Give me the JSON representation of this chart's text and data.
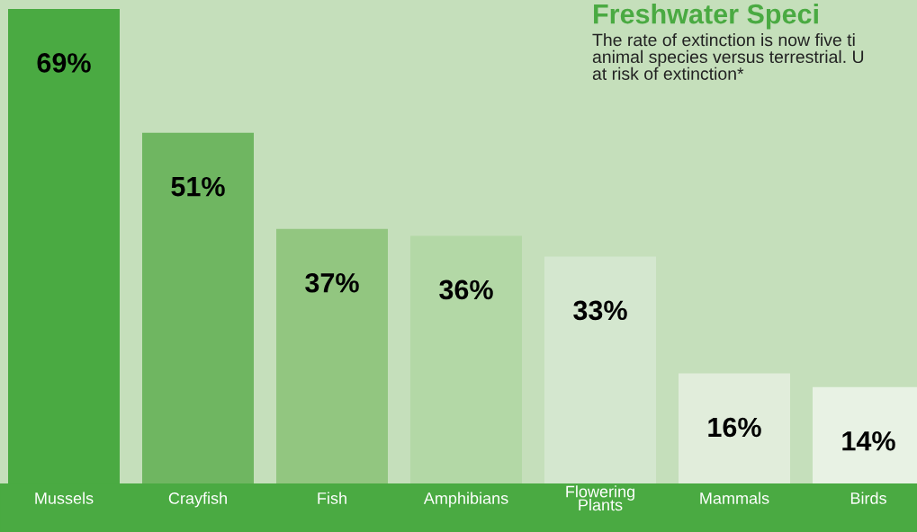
{
  "chart_data": {
    "type": "bar",
    "title": "Freshwater Speci",
    "subtitle": "The rate of extinction is now five ti\nanimal species versus terrestrial. U\nat risk of extinction*",
    "categories": [
      "Mussels",
      "Crayfish",
      "Fish",
      "Amphibians",
      "Flowering\nPlants",
      "Mammals",
      "Birds"
    ],
    "values": [
      69,
      51,
      37,
      36,
      33,
      16,
      14
    ],
    "colors": [
      "#4aaa42",
      "#6fb661",
      "#92c680",
      "#b3d8a6",
      "#d4e7cf",
      "#e1eddb",
      "#e8f2e4"
    ],
    "value_labels": [
      "69%",
      "51%",
      "37%",
      "36%",
      "33%",
      "16%",
      "14%"
    ]
  }
}
